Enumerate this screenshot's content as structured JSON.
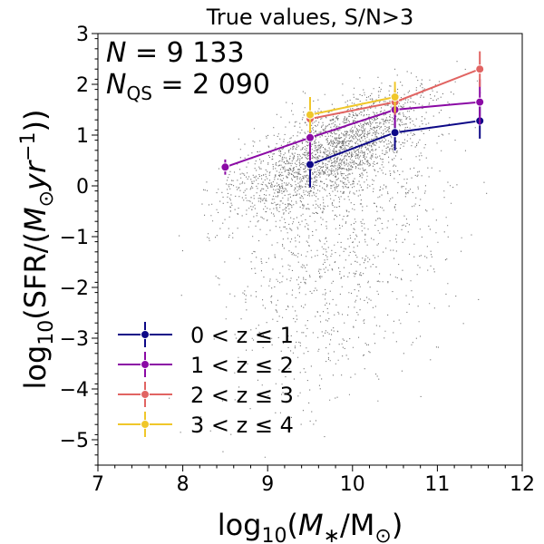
{
  "chart_data": {
    "type": "scatter",
    "title": "True values, S/N>3",
    "xlabel": "log10(M*/M⊙)",
    "ylabel": "log10(SFR/(M⊙yr−1))",
    "xlim": [
      7,
      12
    ],
    "ylim": [
      -5.5,
      3
    ],
    "x_ticks": [
      7,
      8,
      9,
      10,
      11,
      12
    ],
    "y_ticks": [
      -5,
      -4,
      -3,
      -2,
      -1,
      0,
      1,
      2,
      3
    ],
    "grid": false,
    "legend_position": "lower-left",
    "annotations": [
      "N = 9 133",
      "NQS = 2 090"
    ],
    "scatter_points": 9133,
    "series": [
      {
        "name": "0 < z ≤ 1",
        "color": "#0d0887",
        "x": [
          9.5,
          10.5,
          11.5
        ],
        "y": [
          0.42,
          1.05,
          1.28
        ],
        "yerr": [
          0.45,
          0.35,
          0.35
        ]
      },
      {
        "name": "1 < z ≤ 2",
        "color": "#8b0aa5",
        "x": [
          8.5,
          9.5,
          10.5,
          11.5
        ],
        "y": [
          0.37,
          0.95,
          1.5,
          1.65
        ],
        "yerr": [
          0.15,
          0.45,
          0.35,
          0.45
        ]
      },
      {
        "name": "2 < z ≤ 3",
        "color": "#e16462",
        "x": [
          9.5,
          10.5,
          11.5
        ],
        "y": [
          1.32,
          1.65,
          2.3
        ],
        "yerr": [
          0.25,
          0.25,
          0.35
        ]
      },
      {
        "name": "3 < z ≤ 4",
        "color": "#f0c72a",
        "x": [
          9.5,
          10.5
        ],
        "y": [
          1.4,
          1.75
        ],
        "yerr": [
          0.35,
          0.3
        ]
      }
    ]
  }
}
